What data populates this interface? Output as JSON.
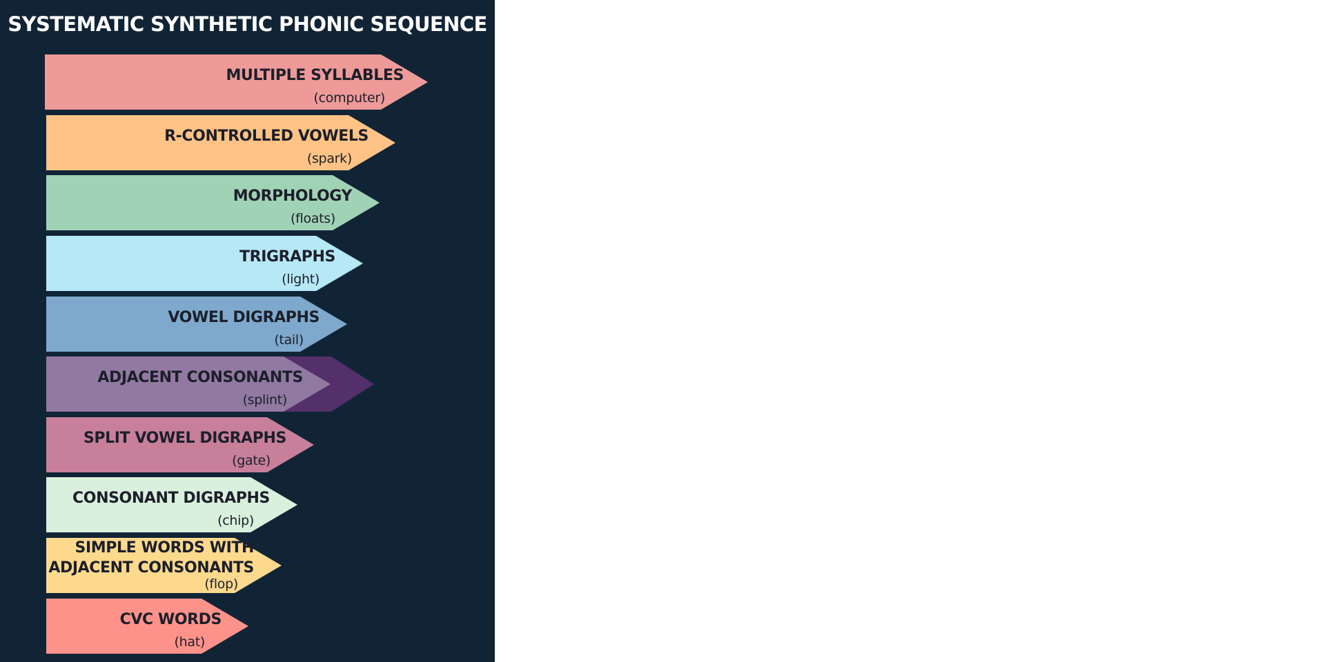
{
  "title": "SYSTEMATIC SYNTHETIC PHONIC SEQUENCE",
  "colors": {
    "panel_background": "#112436",
    "page_background": "#ffffff",
    "title_text": "#ffffff",
    "step_text": "#1c1f2a",
    "adjacent_consonants_highlight": "#53306a"
  },
  "steps": [
    {
      "label": "MULTIPLE SYLLABLES",
      "example": "(computer)",
      "color": "#ee9a99"
    },
    {
      "label": "R-CONTROLLED VOWELS",
      "example": "(spark)",
      "color": "#ffc385"
    },
    {
      "label": "MORPHOLOGY",
      "example": "(floats)",
      "color": "#a0d2b6"
    },
    {
      "label": "TRIGRAPHS",
      "example": "(light)",
      "color": "#b6e8f6"
    },
    {
      "label": "VOWEL DIGRAPHS",
      "example": "(tail)",
      "color": "#7ea9cd"
    },
    {
      "label": "ADJACENT CONSONANTS",
      "example": "(splint)",
      "color": "#9179a2",
      "highlighted": true
    },
    {
      "label": "SPLIT VOWEL DIGRAPHS",
      "example": "(gate)",
      "color": "#c77f9a"
    },
    {
      "label": "CONSONANT DIGRAPHS",
      "example": "(chip)",
      "color": "#d9f0dd"
    },
    {
      "label": "SIMPLE WORDS WITH\nADJACENT CONSONANTS",
      "example": "(flop)",
      "color": "#fdd98e"
    },
    {
      "label": "CVC WORDS",
      "example": "(hat)",
      "color": "#fd928a"
    }
  ]
}
